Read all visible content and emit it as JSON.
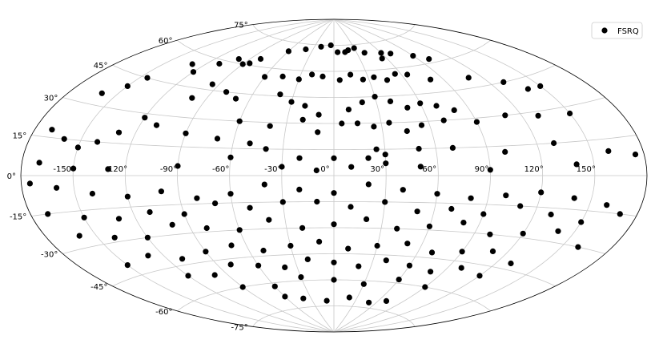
{
  "chart_data": {
    "type": "scatter",
    "projection": "aitoff",
    "grid": true,
    "legend_position": "top-right",
    "marker_color": "#000000",
    "grid_color": "#c8c8c8",
    "series": [
      {
        "name": "FSRQ",
        "points": [
          [
            5,
            71
          ],
          [
            15,
            71
          ],
          [
            20,
            72
          ],
          [
            30,
            73
          ],
          [
            -60,
            70
          ],
          [
            -40,
            72
          ],
          [
            -20,
            74
          ],
          [
            -5,
            75
          ],
          [
            90,
            65
          ],
          [
            70,
            68
          ],
          [
            60,
            69
          ],
          [
            55,
            66
          ],
          [
            40,
            70
          ],
          [
            100,
            62
          ],
          [
            -100,
            62
          ],
          [
            -90,
            60
          ],
          [
            -80,
            64
          ],
          [
            -85,
            61
          ],
          [
            -110,
            58
          ],
          [
            -130,
            55
          ],
          [
            -120,
            52
          ],
          [
            -60,
            55
          ],
          [
            -45,
            56
          ],
          [
            -30,
            55
          ],
          [
            -20,
            58
          ],
          [
            -10,
            57
          ],
          [
            5,
            55
          ],
          [
            15,
            58
          ],
          [
            25,
            55
          ],
          [
            35,
            56
          ],
          [
            45,
            54
          ],
          [
            55,
            57
          ],
          [
            65,
            56
          ],
          [
            80,
            52
          ],
          [
            110,
            50
          ],
          [
            130,
            45
          ],
          [
            140,
            40
          ],
          [
            150,
            40
          ],
          [
            -150,
            40
          ],
          [
            -160,
            35
          ],
          [
            -145,
            45
          ],
          [
            -95,
            48
          ],
          [
            -80,
            45
          ],
          [
            -70,
            42
          ],
          [
            -100,
            40
          ],
          [
            -40,
            46
          ],
          [
            -30,
            42
          ],
          [
            -20,
            40
          ],
          [
            -10,
            35
          ],
          [
            10,
            38
          ],
          [
            20,
            42
          ],
          [
            30,
            45
          ],
          [
            40,
            42
          ],
          [
            50,
            38
          ],
          [
            60,
            40
          ],
          [
            70,
            38
          ],
          [
            80,
            35
          ],
          [
            -60,
            30
          ],
          [
            -40,
            28
          ],
          [
            -20,
            32
          ],
          [
            -10,
            25
          ],
          [
            5,
            30
          ],
          [
            15,
            30
          ],
          [
            25,
            28
          ],
          [
            35,
            30
          ],
          [
            45,
            25
          ],
          [
            55,
            28
          ],
          [
            70,
            30
          ],
          [
            90,
            28
          ],
          [
            110,
            30
          ],
          [
            130,
            28
          ],
          [
            150,
            27
          ],
          [
            -120,
            28
          ],
          [
            -110,
            25
          ],
          [
            -90,
            22
          ],
          [
            -70,
            20
          ],
          [
            -50,
            18
          ],
          [
            -130,
            20
          ],
          [
            -140,
            15
          ],
          [
            -160,
            15
          ],
          [
            -170,
            18
          ],
          [
            -150,
            12
          ],
          [
            -40,
            15
          ],
          [
            -20,
            10
          ],
          [
            0,
            10
          ],
          [
            20,
            10
          ],
          [
            25,
            15
          ],
          [
            30,
            12
          ],
          [
            50,
            15
          ],
          [
            70,
            15
          ],
          [
            100,
            12
          ],
          [
            130,
            15
          ],
          [
            160,
            10
          ],
          [
            175,
            8
          ],
          [
            -170,
            5
          ],
          [
            -150,
            3
          ],
          [
            -130,
            3
          ],
          [
            -90,
            5
          ],
          [
            -60,
            10
          ],
          [
            -30,
            5
          ],
          [
            -10,
            3
          ],
          [
            10,
            5
          ],
          [
            30,
            7
          ],
          [
            50,
            5
          ],
          [
            90,
            3
          ],
          [
            140,
            5
          ],
          [
            -175,
            -3
          ],
          [
            -160,
            -5
          ],
          [
            -140,
            -8
          ],
          [
            -120,
            -10
          ],
          [
            -100,
            -8
          ],
          [
            -80,
            -12
          ],
          [
            -60,
            -10
          ],
          [
            -40,
            -5
          ],
          [
            -20,
            -8
          ],
          [
            0,
            -10
          ],
          [
            20,
            -5
          ],
          [
            40,
            -8
          ],
          [
            60,
            -10
          ],
          [
            80,
            -12
          ],
          [
            100,
            -10
          ],
          [
            120,
            -8
          ],
          [
            140,
            -10
          ],
          [
            160,
            -12
          ],
          [
            -170,
            -15
          ],
          [
            -150,
            -18
          ],
          [
            -130,
            -20
          ],
          [
            -110,
            -18
          ],
          [
            -90,
            -20
          ],
          [
            -70,
            -15
          ],
          [
            -50,
            -18
          ],
          [
            -30,
            -15
          ],
          [
            -10,
            -15
          ],
          [
            10,
            -18
          ],
          [
            30,
            -15
          ],
          [
            50,
            -20
          ],
          [
            70,
            -18
          ],
          [
            90,
            -20
          ],
          [
            110,
            -15
          ],
          [
            130,
            -18
          ],
          [
            150,
            -20
          ],
          [
            170,
            -15
          ],
          [
            -160,
            -25
          ],
          [
            -140,
            -28
          ],
          [
            -120,
            -30
          ],
          [
            -100,
            -25
          ],
          [
            -80,
            -28
          ],
          [
            -60,
            -30
          ],
          [
            -40,
            -25
          ],
          [
            -20,
            -30
          ],
          [
            0,
            -28
          ],
          [
            20,
            -25
          ],
          [
            40,
            -30
          ],
          [
            60,
            -28
          ],
          [
            80,
            -25
          ],
          [
            100,
            -30
          ],
          [
            120,
            -28
          ],
          [
            140,
            -25
          ],
          [
            160,
            -30
          ],
          [
            -150,
            -40
          ],
          [
            -130,
            -38
          ],
          [
            -110,
            -42
          ],
          [
            -90,
            -40
          ],
          [
            -70,
            -38
          ],
          [
            -50,
            -42
          ],
          [
            -30,
            -40
          ],
          [
            -10,
            -38
          ],
          [
            10,
            -42
          ],
          [
            30,
            -40
          ],
          [
            50,
            -38
          ],
          [
            70,
            -42
          ],
          [
            90,
            -40
          ],
          [
            110,
            -38
          ],
          [
            130,
            -42
          ],
          [
            -120,
            -50
          ],
          [
            -100,
            -52
          ],
          [
            -80,
            -48
          ],
          [
            -60,
            -50
          ],
          [
            -40,
            -52
          ],
          [
            -20,
            -48
          ],
          [
            0,
            -50
          ],
          [
            20,
            -52
          ],
          [
            40,
            -48
          ],
          [
            60,
            -50
          ],
          [
            80,
            -52
          ],
          [
            100,
            -48
          ],
          [
            120,
            -50
          ],
          [
            -90,
            -60
          ],
          [
            -60,
            -62
          ],
          [
            -30,
            -58
          ],
          [
            0,
            -60
          ],
          [
            30,
            -62
          ],
          [
            60,
            -58
          ],
          [
            90,
            -60
          ],
          [
            -40,
            -70
          ],
          [
            -10,
            -72
          ],
          [
            20,
            -70
          ],
          [
            50,
            -72
          ],
          [
            -60,
            -68
          ],
          [
            70,
            -70
          ]
        ]
      }
    ],
    "meridian_labels": [
      "-150°",
      "-120°",
      "-90°",
      "-60°",
      "-30°",
      "0°",
      "30°",
      "60°",
      "90°",
      "120°",
      "150°"
    ],
    "meridian_values": [
      -150,
      -120,
      -90,
      -60,
      -30,
      0,
      30,
      60,
      90,
      120,
      150
    ],
    "parallel_labels": [
      "75°",
      "60°",
      "45°",
      "30°",
      "15°",
      "0°",
      "-15°",
      "-30°",
      "-45°",
      "-60°",
      "-75°"
    ],
    "parallel_values": [
      75,
      60,
      45,
      30,
      15,
      0,
      -15,
      -30,
      -45,
      -60,
      -75
    ]
  }
}
